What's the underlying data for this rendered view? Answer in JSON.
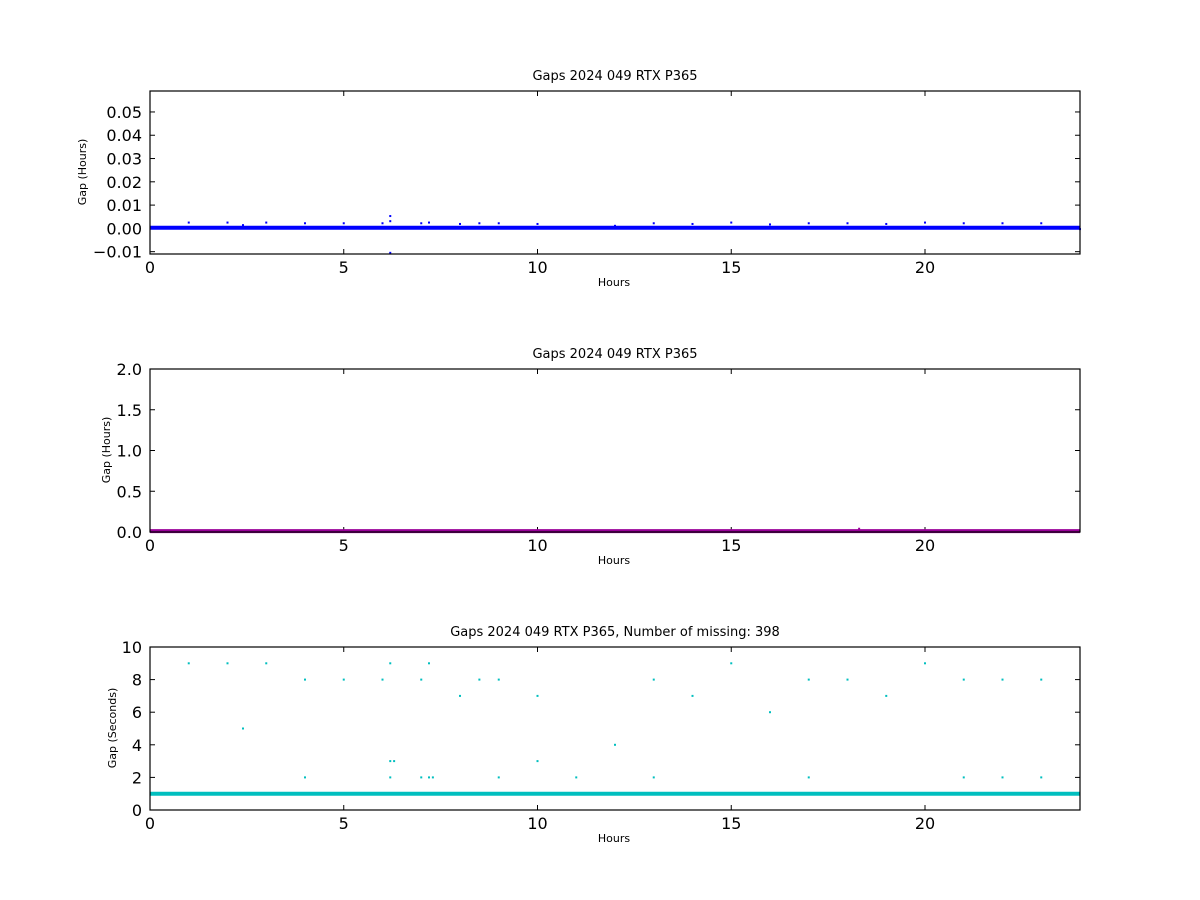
{
  "chart_data": [
    {
      "type": "scatter",
      "title": "Gaps 2024 049 RTX  P365",
      "xlabel": "Hours",
      "ylabel": "Gap (Hours)",
      "xlim": [
        0,
        24
      ],
      "ylim": [
        -0.011,
        0.059
      ],
      "xticks": [
        0,
        5,
        10,
        15,
        20
      ],
      "yticks": [
        -0.01,
        0.0,
        0.01,
        0.02,
        0.03,
        0.04,
        0.05
      ],
      "ytick_labels": [
        "−0.01",
        "0.00",
        "0.01",
        "0.02",
        "0.03",
        "0.04",
        "0.05"
      ],
      "grid": false,
      "series": [
        {
          "color": "#0000ff",
          "baseline": 0.00028,
          "baseline_range": [
            0,
            24
          ],
          "x": [
            1.0,
            2.0,
            2.4,
            3.0,
            4.0,
            5.0,
            6.0,
            6.2,
            6.2,
            6.2,
            7.0,
            7.2,
            8.0,
            8.5,
            9.0,
            10.0,
            12.0,
            13.0,
            14.0,
            15.0,
            16.0,
            17.0,
            18.0,
            18.3,
            19.0,
            20.0,
            21.0,
            22.0,
            23.0,
            24.0
          ],
          "y": [
            0.0025,
            0.0025,
            0.0014,
            0.0025,
            0.0022,
            0.0022,
            0.0022,
            0.0053,
            0.0031,
            -0.0105,
            0.0022,
            0.0025,
            0.0019,
            0.0022,
            0.0022,
            0.0019,
            0.0011,
            0.0022,
            0.0019,
            0.0025,
            0.0017,
            0.0022,
            0.0022,
            0.0,
            0.0019,
            0.0025,
            0.0022,
            0.0022,
            0.0022,
            -0.0003
          ]
        }
      ]
    },
    {
      "type": "scatter",
      "title": "Gaps 2024 049 RTX  P365",
      "xlabel": "Hours",
      "ylabel": "Gap (Hours)",
      "xlim": [
        0,
        24
      ],
      "ylim": [
        0,
        2
      ],
      "xticks": [
        0,
        5,
        10,
        15,
        20
      ],
      "yticks": [
        0.0,
        0.5,
        1.0,
        1.5,
        2.0
      ],
      "ytick_labels": [
        "0.0",
        "0.5",
        "1.0",
        "1.5",
        "2.0"
      ],
      "grid": false,
      "series": [
        {
          "color": "#990099",
          "baseline": 0.01,
          "baseline_range": [
            0,
            24
          ],
          "x": [
            18.3
          ],
          "y": [
            0.04
          ]
        }
      ]
    },
    {
      "type": "scatter",
      "title": "Gaps 2024 049 RTX  P365, Number of missing: 398",
      "xlabel": "Hours",
      "ylabel": "Gap (Seconds)",
      "xlim": [
        0,
        24
      ],
      "ylim": [
        0,
        10
      ],
      "xticks": [
        0,
        5,
        10,
        15,
        20
      ],
      "yticks": [
        0,
        2,
        4,
        6,
        8,
        10
      ],
      "ytick_labels": [
        "0",
        "2",
        "4",
        "6",
        "8",
        "10"
      ],
      "grid": false,
      "series": [
        {
          "color": "#00bfbf",
          "baseline": 1,
          "baseline_range": [
            0,
            24
          ],
          "x": [
            1.0,
            2.0,
            2.4,
            3.0,
            4.0,
            4.0,
            5.0,
            6.0,
            6.2,
            6.2,
            6.2,
            6.3,
            7.0,
            7.0,
            7.2,
            7.2,
            7.3,
            8.0,
            8.5,
            9.0,
            9.0,
            10.0,
            10.0,
            11.0,
            12.0,
            13.0,
            13.0,
            14.0,
            15.0,
            16.0,
            17.0,
            17.0,
            18.0,
            19.0,
            20.0,
            21.0,
            21.0,
            22.0,
            22.0,
            23.0,
            23.0
          ],
          "y": [
            9,
            9,
            5,
            9,
            8,
            2,
            8,
            8,
            9,
            3,
            2,
            3,
            8,
            2,
            9,
            2,
            2,
            7,
            8,
            8,
            2,
            7,
            3,
            2,
            4,
            8,
            2,
            7,
            9,
            6,
            8,
            2,
            8,
            7,
            9,
            8,
            2,
            8,
            2,
            8,
            2
          ]
        }
      ]
    }
  ]
}
